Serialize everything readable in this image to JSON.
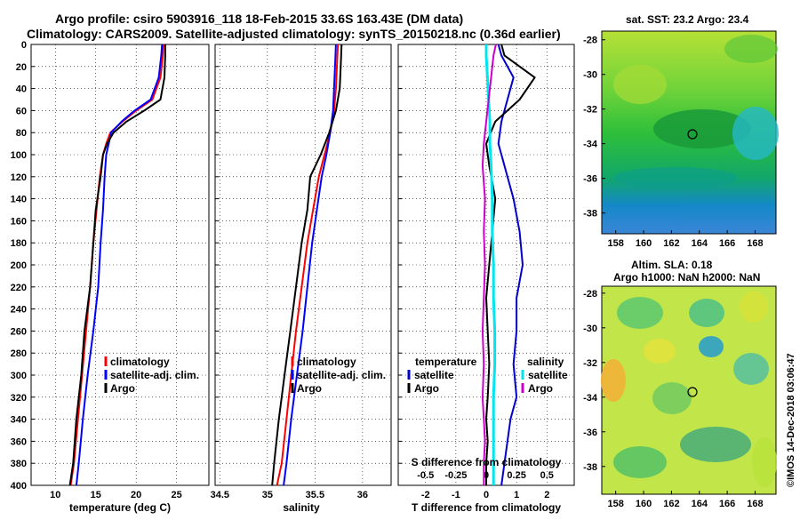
{
  "title": {
    "line1": "Argo profile: csiro 5903916_118 18-Feb-2015 33.6S 163.43E (DM data)",
    "line2": "Climatology: CARS2009. Satellite-adjusted climatology: synTS_20150218.nc (0.36d earlier)"
  },
  "credit": "©IMOS 14-Dec-2018 03:06:47",
  "colors": {
    "climatology": "#ff0000",
    "satellite": "#0000ff",
    "argo": "#000000",
    "t_satellite": "#0000cc",
    "s_satellite": "#00e5ee",
    "s_argo": "#cc00cc"
  },
  "depth_ticks": [
    "0",
    "20",
    "40",
    "60",
    "80",
    "100",
    "120",
    "140",
    "160",
    "180",
    "200",
    "220",
    "240",
    "260",
    "280",
    "300",
    "320",
    "340",
    "360",
    "380",
    "400"
  ],
  "panels": {
    "temperature": {
      "xlabel": "temperature (deg C)",
      "xticks": [
        "10",
        "15",
        "20",
        "25"
      ],
      "legend": [
        "climatology",
        "satellite-adj. clim.",
        "Argo"
      ]
    },
    "salinity": {
      "xlabel": "salinity",
      "xticks": [
        "34.5",
        "35",
        "35.5",
        "36"
      ],
      "legend": [
        "climatology",
        "satellite-adj. clim.",
        "Argo"
      ]
    },
    "difference": {
      "xlabel": "T difference from climatology",
      "top_label": "S difference from climatology",
      "xticks_T": [
        "-2",
        "-1",
        "0",
        "1",
        "2"
      ],
      "xticks_S": [
        "-0.5",
        "-0.25",
        "0",
        "0.25",
        "0.5"
      ],
      "legend_left_title": "temperature",
      "legend_left": [
        "satellite",
        "Argo"
      ],
      "legend_right_title": "salinity",
      "legend_right": [
        "satellite",
        "Argo"
      ]
    }
  },
  "maps": {
    "sst": {
      "title": "sat. SST: 23.2 Argo: 23.4",
      "lon_ticks": [
        "158",
        "160",
        "162",
        "164",
        "166",
        "168"
      ],
      "lat_ticks": [
        "-28",
        "-30",
        "-32",
        "-34",
        "-36",
        "-38"
      ],
      "profile_lon": 163.43,
      "profile_lat": -33.6
    },
    "sla": {
      "title1": "Altim. SLA: 0.18",
      "title2": "Argo h1000: NaN h2000: NaN",
      "lon_ticks": [
        "158",
        "160",
        "162",
        "164",
        "166",
        "168"
      ],
      "lat_ticks": [
        "-28",
        "-30",
        "-32",
        "-34",
        "-36",
        "-38"
      ],
      "profile_lon": 163.43,
      "profile_lat": -33.6
    }
  },
  "chart_data": [
    {
      "type": "line",
      "title": "temperature profile",
      "xlabel": "temperature (deg C)",
      "ylabel": "depth",
      "xlim": [
        7,
        29
      ],
      "ylim": [
        400,
        0
      ],
      "series": [
        {
          "name": "climatology",
          "x": [
            23.4,
            23.3,
            23.0,
            22.0,
            20.0,
            18.3,
            16.8,
            16.3,
            15.9,
            15.5,
            15.1,
            14.7,
            14.3,
            13.8,
            13.3,
            12.8,
            12.3,
            11.9
          ],
          "y": [
            0,
            10,
            30,
            50,
            60,
            70,
            80,
            90,
            100,
            120,
            150,
            180,
            220,
            260,
            300,
            340,
            380,
            400
          ]
        },
        {
          "name": "satellite-adj. clim.",
          "x": [
            23.2,
            23.1,
            22.8,
            21.8,
            19.8,
            18.2,
            16.9,
            16.6,
            16.3,
            16.1,
            15.9,
            15.6,
            15.3,
            14.7,
            14.0,
            13.4,
            12.9,
            12.6
          ],
          "y": [
            0,
            10,
            30,
            50,
            60,
            70,
            80,
            90,
            100,
            120,
            150,
            180,
            220,
            260,
            300,
            340,
            380,
            400
          ]
        },
        {
          "name": "Argo",
          "x": [
            23.6,
            23.6,
            23.5,
            23.0,
            21.0,
            18.8,
            17.2,
            16.4,
            15.9,
            15.6,
            15.0,
            14.7,
            14.3,
            13.6,
            13.2,
            12.6,
            12.2,
            11.8
          ],
          "y": [
            0,
            10,
            30,
            50,
            60,
            70,
            80,
            90,
            100,
            120,
            150,
            180,
            220,
            260,
            300,
            340,
            380,
            400
          ]
        }
      ]
    },
    {
      "type": "line",
      "title": "salinity profile",
      "xlabel": "salinity",
      "ylabel": "depth",
      "xlim": [
        34.45,
        36.3
      ],
      "ylim": [
        400,
        0
      ],
      "series": [
        {
          "name": "climatology",
          "x": [
            35.74,
            35.73,
            35.72,
            35.7,
            35.66,
            35.6,
            35.54,
            35.48,
            35.42,
            35.36,
            35.3,
            35.25,
            35.2,
            35.15,
            35.1
          ],
          "y": [
            0,
            20,
            40,
            60,
            80,
            100,
            120,
            150,
            180,
            220,
            260,
            300,
            340,
            380,
            400
          ]
        },
        {
          "name": "satellite-adj. clim.",
          "x": [
            35.72,
            35.71,
            35.7,
            35.69,
            35.66,
            35.62,
            35.57,
            35.52,
            35.47,
            35.42,
            35.37,
            35.31,
            35.25,
            35.2,
            35.17
          ],
          "y": [
            0,
            20,
            40,
            60,
            80,
            100,
            120,
            150,
            180,
            220,
            260,
            300,
            340,
            380,
            400
          ]
        },
        {
          "name": "Argo",
          "x": [
            35.78,
            35.77,
            35.76,
            35.72,
            35.65,
            35.56,
            35.45,
            35.42,
            35.36,
            35.3,
            35.24,
            35.18,
            35.12,
            35.07,
            35.05
          ],
          "y": [
            0,
            20,
            40,
            60,
            80,
            100,
            120,
            150,
            180,
            220,
            260,
            300,
            340,
            380,
            400
          ]
        }
      ]
    },
    {
      "type": "line",
      "title": "difference from climatology",
      "xlabel": "T difference from climatology",
      "x2label": "S difference from climatology",
      "xlim": [
        -2.9,
        2.9
      ],
      "x2lim": [
        -0.725,
        0.725
      ],
      "ylim": [
        400,
        0
      ],
      "series": [
        {
          "name": "temperature satellite",
          "axis": "T",
          "x": [
            0.4,
            0.5,
            0.9,
            0.7,
            0.5,
            0.4,
            0.6,
            0.9,
            1.1,
            1.2,
            1.0,
            1.0,
            0.9,
            1.0,
            0.8,
            0.7,
            0.6,
            0.5
          ],
          "y": [
            0,
            10,
            30,
            50,
            70,
            90,
            110,
            140,
            170,
            200,
            230,
            260,
            290,
            320,
            340,
            360,
            380,
            400
          ]
        },
        {
          "name": "temperature Argo",
          "axis": "T",
          "x": [
            0.5,
            0.6,
            1.6,
            1.1,
            0.3,
            0.0,
            0.1,
            0.3,
            0.2,
            0.1,
            0.0,
            0.05,
            0.1,
            0.05,
            0.0,
            0.05,
            0.0,
            0.0
          ],
          "y": [
            0,
            10,
            30,
            50,
            70,
            90,
            110,
            140,
            170,
            200,
            230,
            260,
            290,
            320,
            340,
            360,
            380,
            400
          ]
        },
        {
          "name": "salinity satellite",
          "axis": "S",
          "x": [
            0.0,
            0.0,
            0.01,
            0.02,
            0.03,
            0.03,
            0.04,
            0.05,
            0.05,
            0.06,
            0.06,
            0.07,
            0.07,
            0.06,
            0.06,
            0.06,
            0.06,
            0.06
          ],
          "y": [
            0,
            10,
            30,
            50,
            70,
            90,
            110,
            140,
            170,
            200,
            230,
            260,
            290,
            320,
            340,
            360,
            380,
            400
          ]
        },
        {
          "name": "salinity Argo",
          "axis": "S",
          "x": [
            0.08,
            0.06,
            0.04,
            0.02,
            0.0,
            -0.02,
            -0.03,
            -0.01,
            -0.02,
            -0.01,
            -0.02,
            -0.03,
            -0.02,
            -0.03,
            -0.02,
            -0.01,
            -0.02,
            -0.02
          ],
          "y": [
            0,
            10,
            30,
            50,
            70,
            90,
            110,
            140,
            170,
            200,
            230,
            260,
            290,
            320,
            340,
            360,
            380,
            400
          ]
        }
      ]
    }
  ]
}
